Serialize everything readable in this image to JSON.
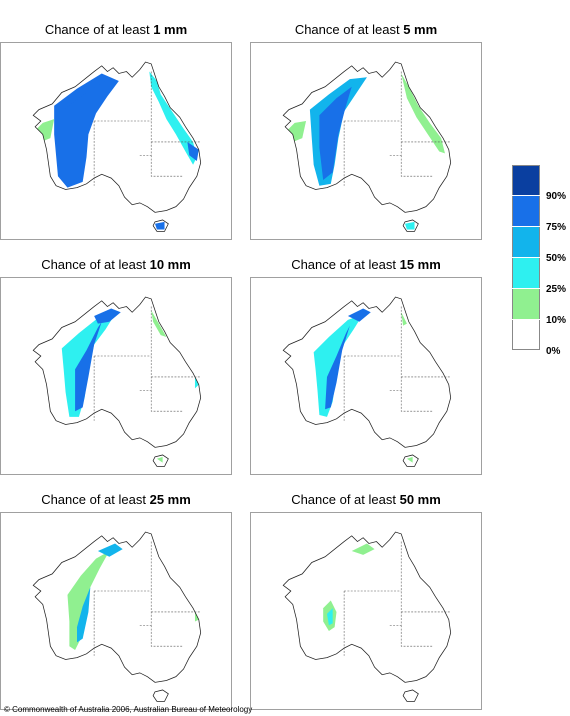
{
  "panels": [
    {
      "prefix": "Chance of at least ",
      "amount": "1 mm",
      "level": 0
    },
    {
      "prefix": "Chance of at least ",
      "amount": "5 mm",
      "level": 1
    },
    {
      "prefix": "Chance of at least ",
      "amount": "10 mm",
      "level": 2
    },
    {
      "prefix": "Chance of at least ",
      "amount": "15 mm",
      "level": 3
    },
    {
      "prefix": "Chance of at least ",
      "amount": "25 mm",
      "level": 4
    },
    {
      "prefix": "Chance of at least ",
      "amount": "50 mm",
      "level": 5
    }
  ],
  "legend": {
    "labels": [
      "90%",
      "75%",
      "50%",
      "25%",
      "10%",
      "0%"
    ],
    "colors": [
      "#0a3fa0",
      "#1870e8",
      "#12b4ec",
      "#2ef0f0",
      "#90f090",
      "#ffffff"
    ]
  },
  "copyright": "© Commonwealth of Australia 2006, Australian Bureau of Meteorology"
}
